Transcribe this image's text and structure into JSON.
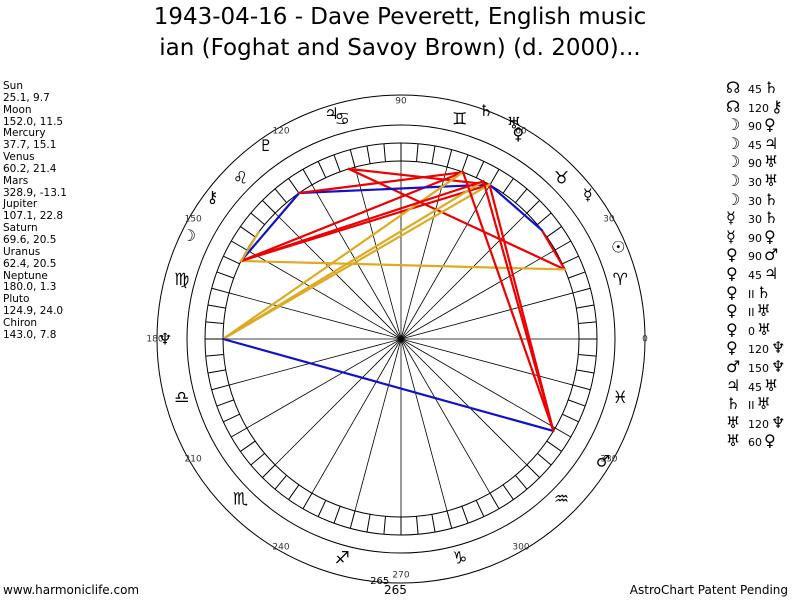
{
  "title": {
    "line1": "1943-04-16 - Dave Peverett, English music",
    "line2": "ian (Foghat and Savoy Brown) (d. 2000)..."
  },
  "planets": [
    {
      "name": "Sun",
      "glyph": "☉",
      "lon": 25.1,
      "lat": 9.7,
      "coords": "25.1, 9.7",
      "plot_angle": 23.0
    },
    {
      "name": "Moon",
      "glyph": "☽",
      "lon": 152.0,
      "lat": 11.5,
      "coords": "152.0, 11.5",
      "plot_angle": 154.0
    },
    {
      "name": "Mercury",
      "glyph": "☿",
      "lon": 37.7,
      "lat": 15.1,
      "coords": "37.7, 15.1",
      "plot_angle": 37.7
    },
    {
      "name": "Venus",
      "glyph": "♀",
      "lon": 60.2,
      "lat": 21.4,
      "coords": "60.2, 21.4",
      "plot_angle": 60.2
    },
    {
      "name": "Mars",
      "glyph": "♂",
      "lon": 328.9,
      "lat": -13.1,
      "coords": "328.9, -13.1",
      "plot_angle": 328.9
    },
    {
      "name": "Jupiter",
      "glyph": "♃",
      "lon": 107.1,
      "lat": 22.8,
      "coords": "107.1, 22.8",
      "plot_angle": 107.1
    },
    {
      "name": "Saturn",
      "glyph": "♄",
      "lon": 69.6,
      "lat": 20.5,
      "coords": "69.6, 20.5",
      "plot_angle": 69.6
    },
    {
      "name": "Uranus",
      "glyph": "♅",
      "lon": 62.4,
      "lat": 20.5,
      "coords": "62.4, 20.5",
      "plot_angle": 62.4
    },
    {
      "name": "Neptune",
      "glyph": "♆",
      "lon": 180.0,
      "lat": 1.3,
      "coords": "180.0, 1.3",
      "plot_angle": 180.0
    },
    {
      "name": "Pluto",
      "glyph": "♇",
      "lon": 124.9,
      "lat": 24.0,
      "coords": "124.9, 24.0",
      "plot_angle": 124.9
    },
    {
      "name": "Chiron",
      "glyph": "⚷",
      "lon": 143.0,
      "lat": 7.8,
      "coords": "143.0, 7.8",
      "plot_angle": 143.0
    }
  ],
  "aspects": [
    {
      "p1": "☊",
      "angle": "45",
      "p2": "♄"
    },
    {
      "p1": "☊",
      "angle": "120",
      "p2": "⚷"
    },
    {
      "p1": "☽",
      "angle": "90",
      "p2": "♀"
    },
    {
      "p1": "☽",
      "angle": "45",
      "p2": "♃"
    },
    {
      "p1": "☽",
      "angle": "90",
      "p2": "♅"
    },
    {
      "p1": "☽",
      "angle": "30",
      "p2": "♅"
    },
    {
      "p1": "☽",
      "angle": "30",
      "p2": "♄"
    },
    {
      "p1": "☿",
      "angle": "30",
      "p2": "♄"
    },
    {
      "p1": "☿",
      "angle": "90",
      "p2": "♀"
    },
    {
      "p1": "♀",
      "angle": "90",
      "p2": "♂"
    },
    {
      "p1": "♀",
      "angle": "45",
      "p2": "♃"
    },
    {
      "p1": "♀",
      "angle": "II",
      "p2": "♄"
    },
    {
      "p1": "♀",
      "angle": "II",
      "p2": "♅"
    },
    {
      "p1": "♀",
      "angle": "0",
      "p2": "♅"
    },
    {
      "p1": "♀",
      "angle": "120",
      "p2": "♆"
    },
    {
      "p1": "♂",
      "angle": "150",
      "p2": "♆"
    },
    {
      "p1": "♃",
      "angle": "45",
      "p2": "♅"
    },
    {
      "p1": "♄",
      "angle": "II",
      "p2": "♅"
    },
    {
      "p1": "♅",
      "angle": "120",
      "p2": "♆"
    },
    {
      "p1": "♅",
      "angle": "60",
      "p2": "♀"
    }
  ],
  "wheel": {
    "degree_labels": [
      "0",
      "30",
      "60",
      "90",
      "120",
      "150",
      "180",
      "210",
      "240",
      "270",
      "300",
      "330"
    ],
    "signs": [
      "♈",
      "♉",
      "♊",
      "♋",
      "♌",
      "♍",
      "♎",
      "♏",
      "♐",
      "♑",
      "♒",
      "♓"
    ],
    "bottom_marker": "265"
  },
  "aspect_lines": [
    {
      "from": "Sun",
      "to": "Jupiter",
      "color": "#ee0000"
    },
    {
      "from": "Sun",
      "to": "Mercury",
      "color": "#ee0000"
    },
    {
      "from": "Moon",
      "to": "Sun",
      "color": "#ddaa22"
    },
    {
      "from": "Moon",
      "to": "Venus",
      "color": "#ee0000"
    },
    {
      "from": "Moon",
      "to": "Saturn",
      "color": "#ee0000"
    },
    {
      "from": "Moon",
      "to": "Pluto",
      "color": "#1111cc"
    },
    {
      "from": "Mercury",
      "to": "Venus",
      "color": "#1111cc"
    },
    {
      "from": "Venus",
      "to": "Mars",
      "color": "#ee0000"
    },
    {
      "from": "Pluto",
      "to": "Venus",
      "color": "#1111cc"
    },
    {
      "from": "Pluto",
      "to": "Saturn",
      "color": "#ee0000"
    },
    {
      "from": "Jupiter",
      "to": "Venus",
      "color": "#ee0000"
    },
    {
      "from": "Neptune",
      "to": "Venus",
      "color": "#ddaa22"
    },
    {
      "from": "Neptune",
      "to": "Saturn",
      "color": "#ddaa22"
    },
    {
      "from": "Neptune",
      "to": "Uranus",
      "color": "#ddaa22"
    },
    {
      "from": "Neptune",
      "to": "Mars",
      "color": "#1111cc"
    },
    {
      "from": "Mars",
      "to": "Saturn",
      "color": "#ee0000"
    },
    {
      "from": "Moon",
      "to": "Uranus",
      "color": "#ee0000"
    },
    {
      "from": "Mars",
      "to": "Uranus",
      "color": "#ee0000"
    },
    {
      "from": "Chiron",
      "to": "Moon",
      "color": "#ddaa22"
    }
  ],
  "footer": {
    "left": "www.harmoniclife.com",
    "center": "265",
    "right": "AstroChart Patent Pending"
  }
}
